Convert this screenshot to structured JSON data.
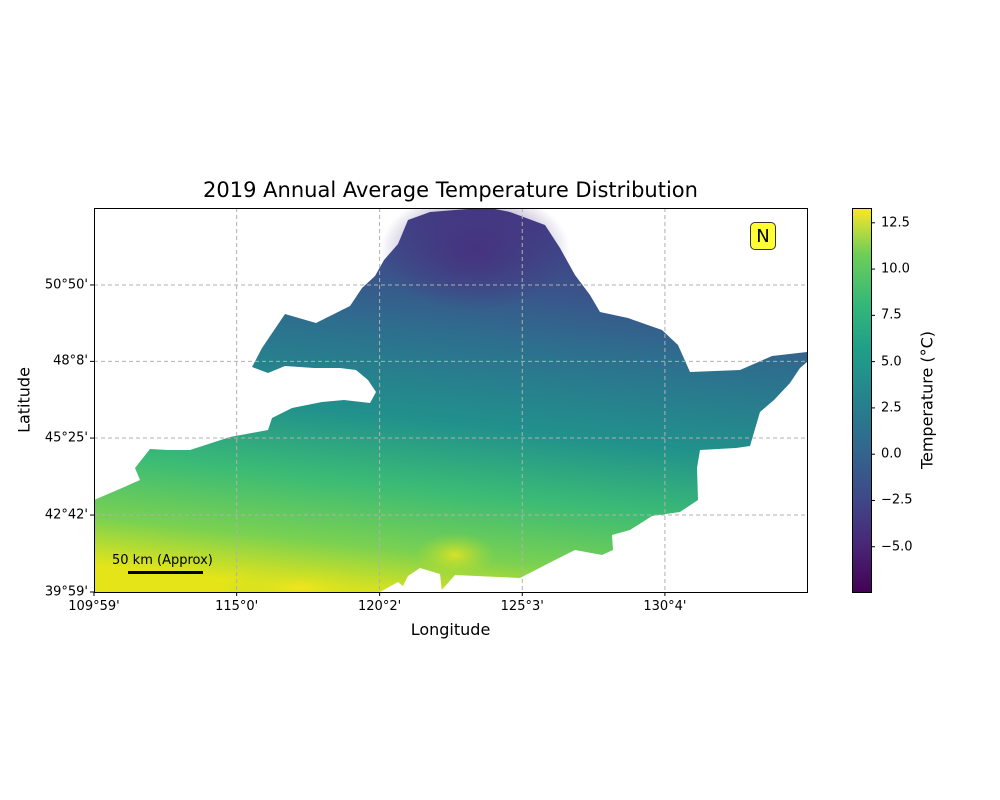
{
  "title": "2019 Annual Average Temperature Distribution",
  "x_axis": {
    "label": "Longitude",
    "ticks": [
      {
        "label": "109°59'",
        "value": 109.98
      },
      {
        "label": "115°0'",
        "value": 115.0
      },
      {
        "label": "120°2'",
        "value": 120.03
      },
      {
        "label": "125°3'",
        "value": 125.05
      },
      {
        "label": "130°4'",
        "value": 130.07
      }
    ],
    "range": [
      109.98,
      135.07
    ]
  },
  "y_axis": {
    "label": "Latitude",
    "ticks": [
      {
        "label": "39°59'",
        "value": 39.98
      },
      {
        "label": "42°42'",
        "value": 42.7
      },
      {
        "label": "45°25'",
        "value": 45.42
      },
      {
        "label": "48°8'",
        "value": 48.13
      },
      {
        "label": "50°50'",
        "value": 50.83
      }
    ],
    "range": [
      39.98,
      53.55
    ]
  },
  "colorbar": {
    "label": "Temperature (°C)",
    "colormap": "viridis",
    "range": [
      -7.5,
      13.3
    ],
    "ticks": [
      {
        "label": "12.5",
        "value": 12.5
      },
      {
        "label": "10.0",
        "value": 10.0
      },
      {
        "label": "7.5",
        "value": 7.5
      },
      {
        "label": "5.0",
        "value": 5.0
      },
      {
        "label": "2.5",
        "value": 2.5
      },
      {
        "label": "0.0",
        "value": 0.0
      },
      {
        "label": "−2.5",
        "value": -2.5
      },
      {
        "label": "−5.0",
        "value": -5.0
      }
    ]
  },
  "north_arrow": {
    "label": "N",
    "color": "#ffff33"
  },
  "scale_bar": {
    "label": "50 km (Approx)"
  },
  "colors": {
    "cold": "#440154",
    "mid": "#21918c",
    "warm": "#fde725",
    "grid": "#b0b0b0"
  }
}
